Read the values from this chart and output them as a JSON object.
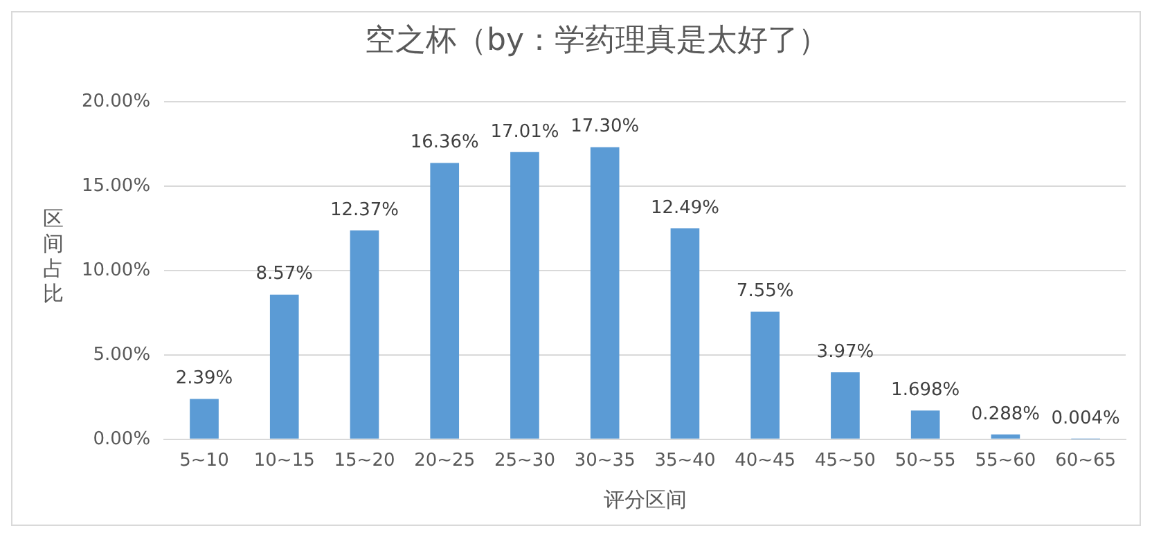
{
  "chart_data": {
    "type": "bar",
    "title": "空之杯（by：学药理真是太好了）",
    "xlabel": "评分区间",
    "ylabel": "区间占比",
    "categories": [
      "5~10",
      "10~15",
      "15~20",
      "20~25",
      "25~30",
      "30~35",
      "35~40",
      "40~45",
      "45~50",
      "50~55",
      "55~60",
      "60~65"
    ],
    "values": [
      2.39,
      8.57,
      12.37,
      16.36,
      17.01,
      17.3,
      12.49,
      7.55,
      3.97,
      1.698,
      0.288,
      0.004
    ],
    "value_labels": [
      "2.39%",
      "8.57%",
      "12.37%",
      "16.36%",
      "17.01%",
      "17.30%",
      "12.49%",
      "7.55%",
      "3.97%",
      "1.698%",
      "0.288%",
      "0.004%"
    ],
    "color": "#5b9bd5",
    "ylim": [
      0,
      20
    ],
    "yticks": [
      {
        "value": 0,
        "label": "0.00%"
      },
      {
        "value": 5,
        "label": "5.00%"
      },
      {
        "value": 10,
        "label": "10.00%"
      },
      {
        "value": 15,
        "label": "15.00%"
      },
      {
        "value": 20,
        "label": "20.00%"
      }
    ],
    "grid": "y",
    "legend": false
  }
}
